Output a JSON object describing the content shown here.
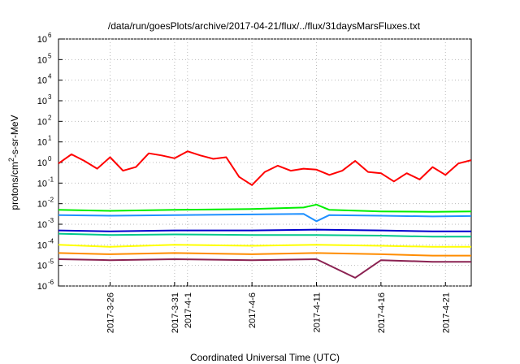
{
  "chart_data": {
    "type": "line",
    "title": "/data/run/goesPlots/archive/2017-04-21/flux/../flux/31daysMarsFluxes.txt",
    "xlabel": "Coordinated Universal Time (UTC)",
    "ylabel": "protons/cm²-s-sr-MeV",
    "yscale": "log",
    "ylim": [
      1e-06,
      1000000.0
    ],
    "xlim": [
      "2017-03-22",
      "2017-04-23"
    ],
    "grid": true,
    "y_ticks": [
      {
        "base": "10",
        "exp": "-6"
      },
      {
        "base": "10",
        "exp": "-5"
      },
      {
        "base": "10",
        "exp": "-4"
      },
      {
        "base": "10",
        "exp": "-3"
      },
      {
        "base": "10",
        "exp": "-2"
      },
      {
        "base": "10",
        "exp": "-1"
      },
      {
        "base": "10",
        "exp": "0"
      },
      {
        "base": "10",
        "exp": "1"
      },
      {
        "base": "10",
        "exp": "2"
      },
      {
        "base": "10",
        "exp": "3"
      },
      {
        "base": "10",
        "exp": "4"
      },
      {
        "base": "10",
        "exp": "5"
      },
      {
        "base": "10",
        "exp": "6"
      }
    ],
    "x_ticks": [
      {
        "label": "2017-3-26",
        "date": "2017-03-26"
      },
      {
        "label": "2017-3-31",
        "date": "2017-03-31"
      },
      {
        "label": "2017-4-1",
        "date": "2017-04-01"
      },
      {
        "label": "2017-4-6",
        "date": "2017-04-06"
      },
      {
        "label": "2017-4-11",
        "date": "2017-04-11"
      },
      {
        "label": "2017-4-16",
        "date": "2017-04-16"
      },
      {
        "label": "2017-4-21",
        "date": "2017-04-21"
      }
    ],
    "series": [
      {
        "color": "#ff0000",
        "x": [
          "2017-03-22",
          "2017-03-23",
          "2017-03-24",
          "2017-03-25",
          "2017-03-26",
          "2017-03-27",
          "2017-03-28",
          "2017-03-29",
          "2017-03-30",
          "2017-03-31",
          "2017-04-01",
          "2017-04-02",
          "2017-04-03",
          "2017-04-04",
          "2017-04-05",
          "2017-04-06",
          "2017-04-07",
          "2017-04-08",
          "2017-04-09",
          "2017-04-10",
          "2017-04-11",
          "2017-04-12",
          "2017-04-13",
          "2017-04-14",
          "2017-04-15",
          "2017-04-16",
          "2017-04-17",
          "2017-04-18",
          "2017-04-19",
          "2017-04-20",
          "2017-04-21",
          "2017-04-22",
          "2017-04-23"
        ],
        "values": [
          0.9,
          2.5,
          1.2,
          0.5,
          1.8,
          0.4,
          0.6,
          2.8,
          2.2,
          1.6,
          3.5,
          2.2,
          1.5,
          1.8,
          0.2,
          0.08,
          0.35,
          0.7,
          0.4,
          0.5,
          0.45,
          0.25,
          0.4,
          1.2,
          0.35,
          0.3,
          0.12,
          0.3,
          0.15,
          0.6,
          0.25,
          0.9,
          1.3
        ]
      },
      {
        "color": "#00ee00",
        "x": [
          "2017-03-22",
          "2017-03-26",
          "2017-03-31",
          "2017-04-06",
          "2017-04-10",
          "2017-04-11",
          "2017-04-12",
          "2017-04-16",
          "2017-04-20",
          "2017-04-23"
        ],
        "values": [
          0.005,
          0.0045,
          0.005,
          0.0055,
          0.0065,
          0.009,
          0.005,
          0.0042,
          0.004,
          0.0042
        ]
      },
      {
        "color": "#1e90ff",
        "x": [
          "2017-03-22",
          "2017-03-26",
          "2017-03-31",
          "2017-04-06",
          "2017-04-10",
          "2017-04-11",
          "2017-04-12",
          "2017-04-16",
          "2017-04-20",
          "2017-04-23"
        ],
        "values": [
          0.0028,
          0.0026,
          0.0028,
          0.003,
          0.0032,
          0.0014,
          0.0028,
          0.0026,
          0.0024,
          0.0025
        ]
      },
      {
        "color": "#0000cd",
        "x": [
          "2017-03-22",
          "2017-03-26",
          "2017-03-31",
          "2017-04-06",
          "2017-04-11",
          "2017-04-16",
          "2017-04-20",
          "2017-04-23"
        ],
        "values": [
          0.0005,
          0.00045,
          0.0005,
          0.0005,
          0.00055,
          0.0005,
          0.00045,
          0.00045
        ]
      },
      {
        "color": "#00c78c",
        "x": [
          "2017-03-22",
          "2017-03-26",
          "2017-03-31",
          "2017-04-06",
          "2017-04-11",
          "2017-04-16",
          "2017-04-20",
          "2017-04-23"
        ],
        "values": [
          0.00035,
          0.0003,
          0.00032,
          0.0003,
          0.0003,
          0.00028,
          0.00025,
          0.00025
        ]
      },
      {
        "color": "#ffff00",
        "x": [
          "2017-03-22",
          "2017-03-26",
          "2017-03-31",
          "2017-04-06",
          "2017-04-11",
          "2017-04-16",
          "2017-04-20",
          "2017-04-23"
        ],
        "values": [
          0.0001,
          8e-05,
          0.0001,
          9e-05,
          0.0001,
          9e-05,
          8e-05,
          8e-05
        ]
      },
      {
        "color": "#ff8c00",
        "x": [
          "2017-03-22",
          "2017-03-26",
          "2017-03-31",
          "2017-04-06",
          "2017-04-11",
          "2017-04-16",
          "2017-04-20",
          "2017-04-23"
        ],
        "values": [
          4e-05,
          3.5e-05,
          4e-05,
          3.5e-05,
          4e-05,
          3.5e-05,
          3e-05,
          3e-05
        ]
      },
      {
        "color": "#8b2252",
        "x": [
          "2017-03-22",
          "2017-03-26",
          "2017-03-31",
          "2017-04-06",
          "2017-04-11",
          "2017-04-14",
          "2017-04-16",
          "2017-04-20",
          "2017-04-23"
        ],
        "values": [
          2e-05,
          1.8e-05,
          2e-05,
          1.8e-05,
          2e-05,
          2.5e-06,
          1.8e-05,
          1.5e-05,
          1.5e-05
        ]
      }
    ]
  }
}
